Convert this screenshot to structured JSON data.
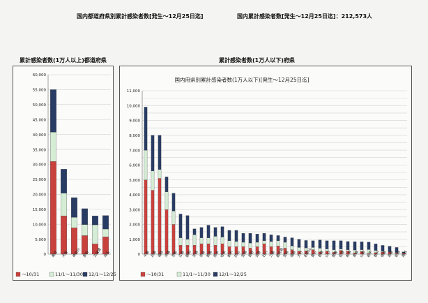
{
  "header": {
    "title_left": "国内都道府県別累計感染者数[発生～12月25日迄]",
    "title_right": "国内累計感染者数[発生～12月25日迄]：212,573人",
    "left_label": "累計感染者数(1万人以上)都道府県",
    "right_label": "累計感染者数(1万人以下)府県"
  },
  "colors": {
    "s1": "#c9413d",
    "s2": "#d5ecd5",
    "s3": "#283c64"
  },
  "chart_data": [
    {
      "type": "bar",
      "stacked": true,
      "title": "",
      "ylim": [
        0,
        60000
      ],
      "yticks": [
        "0",
        "5,000",
        "10,000",
        "15,000",
        "20,000",
        "25,000",
        "30,000",
        "35,000",
        "40,000",
        "45,000",
        "50,000",
        "55,000",
        "60,000"
      ],
      "categories": [
        "東京",
        "大阪",
        "神奈川",
        "愛知",
        "北海道",
        "埼玉"
      ],
      "series": [
        {
          "name": "～10/31",
          "values": [
            31000,
            12800,
            8800,
            6200,
            3400,
            5800
          ]
        },
        {
          "name": "11/1～11/30",
          "values": [
            9800,
            7600,
            3500,
            3700,
            6400,
            2600
          ]
        },
        {
          "name": "12/1～12/25",
          "values": [
            14200,
            8000,
            6600,
            5300,
            3000,
            4500
          ]
        }
      ],
      "legend_position": "bottom"
    },
    {
      "type": "bar",
      "stacked": true,
      "title": "国内府県別累計感染者数(1万人以下)[発生～12月25日迄]",
      "ylim": [
        0,
        11000
      ],
      "yticks": [
        "0",
        "500",
        "1,000",
        "1,500",
        "2,000",
        "2,500",
        "3,000",
        "3,500",
        "4,000",
        "4,500",
        "5,000",
        "5,500",
        "6,000",
        "6,500",
        "7,000",
        "7,500",
        "8,000",
        "8,500",
        "9,000",
        "9,500",
        "10,000",
        "10,500",
        "11,000"
      ],
      "categories": [
        "千葉",
        "兵庫",
        "福岡",
        "沖縄",
        "京都",
        "広島",
        "静岡",
        "茨城",
        "奈良",
        "群馬",
        "熊本",
        "岐阜",
        "栃木",
        "岡山",
        "宮城",
        "長野",
        "滋賀",
        "石川",
        "三重",
        "鹿児島",
        "宮崎",
        "福島",
        "大分",
        "和歌山",
        "富山",
        "長崎",
        "山口",
        "愛媛",
        "佐賀",
        "新潟",
        "青森",
        "山梨",
        "岩手",
        "香川",
        "徳島",
        "島根",
        "秋田",
        "鳥取"
      ],
      "series": [
        {
          "name": "～10/31",
          "values": [
            5000,
            4300,
            5100,
            3000,
            2000,
            600,
            600,
            600,
            700,
            700,
            600,
            700,
            500,
            500,
            500,
            400,
            500,
            700,
            500,
            550,
            400,
            300,
            200,
            220,
            300,
            150,
            200,
            120,
            250,
            200,
            80,
            180,
            30,
            100,
            140,
            140,
            60,
            60
          ]
        },
        {
          "name": "11/1～11/30",
          "values": [
            2000,
            1300,
            600,
            1200,
            900,
            500,
            400,
            700,
            400,
            400,
            600,
            450,
            400,
            350,
            300,
            350,
            300,
            200,
            350,
            350,
            400,
            250,
            250,
            200,
            150,
            250,
            150,
            180,
            100,
            100,
            200,
            120,
            280,
            150,
            50,
            10,
            40,
            20
          ]
        },
        {
          "name": "12/1～12/25",
          "values": [
            2900,
            2400,
            2300,
            1000,
            1200,
            1600,
            1600,
            400,
            700,
            850,
            600,
            700,
            700,
            750,
            600,
            650,
            550,
            500,
            450,
            350,
            350,
            550,
            550,
            500,
            450,
            550,
            550,
            600,
            550,
            550,
            560,
            530,
            500,
            440,
            400,
            380,
            350,
            70
          ]
        }
      ],
      "legend_position": "bottom"
    }
  ]
}
